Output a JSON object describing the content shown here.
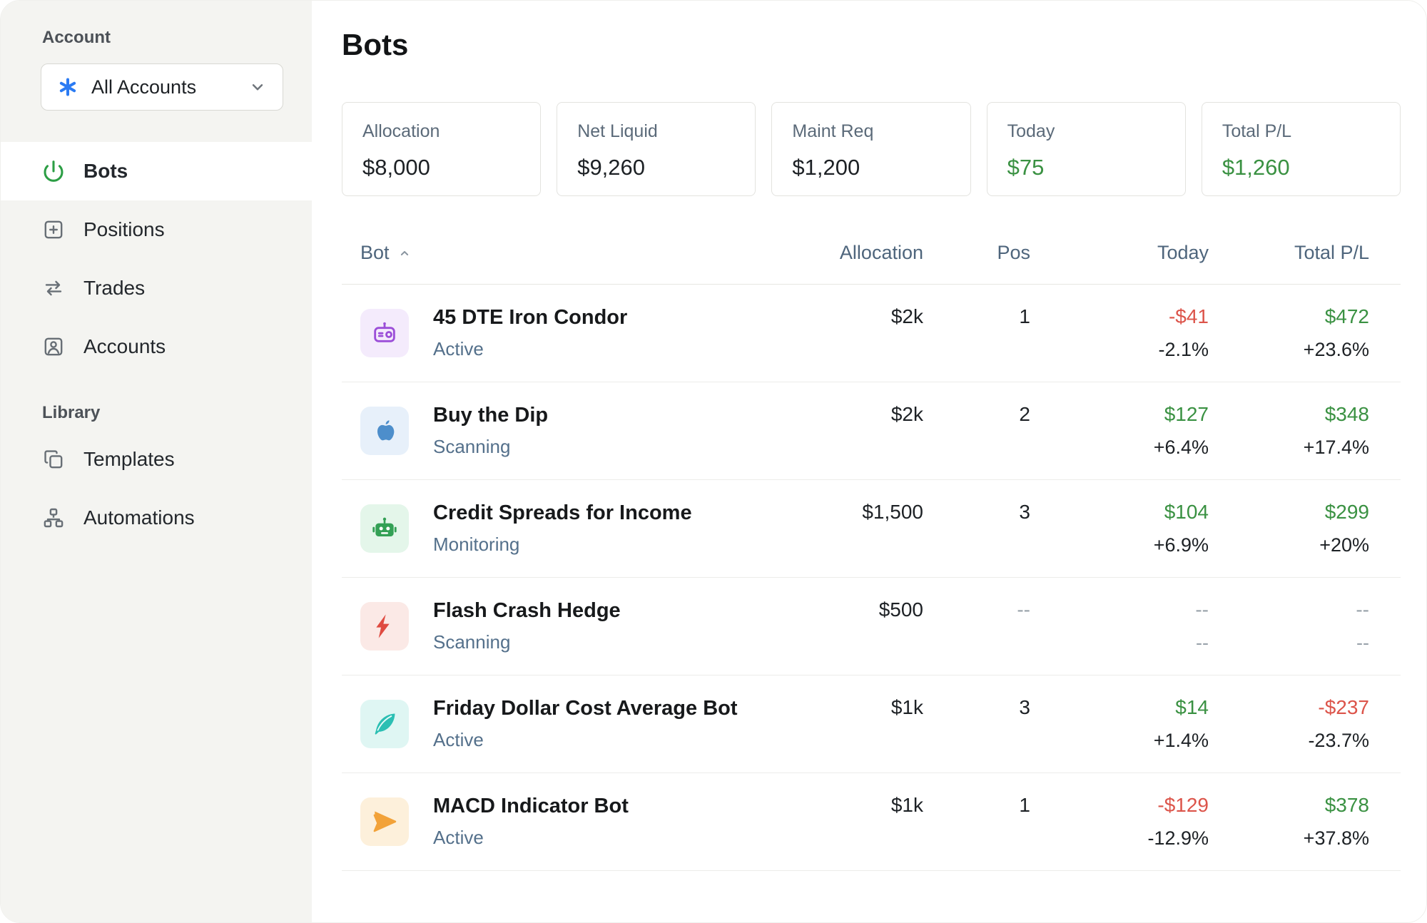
{
  "sidebar": {
    "account_label": "Account",
    "account_selector": {
      "value": "All Accounts",
      "icon": "asterisk-icon",
      "chevron": "chevron-down-icon"
    },
    "nav_items": [
      {
        "label": "Bots",
        "icon": "power-icon",
        "active": true
      },
      {
        "label": "Positions",
        "icon": "plus-square-icon",
        "active": false
      },
      {
        "label": "Trades",
        "icon": "swap-arrows-icon",
        "active": false
      },
      {
        "label": "Accounts",
        "icon": "user-icon",
        "active": false
      }
    ],
    "library_label": "Library",
    "library_items": [
      {
        "label": "Templates",
        "icon": "copy-icon",
        "active": false
      },
      {
        "label": "Automations",
        "icon": "workflow-icon",
        "active": false
      }
    ]
  },
  "page": {
    "title": "Bots"
  },
  "stats": [
    {
      "label": "Allocation",
      "value": "$8,000",
      "color": "dark"
    },
    {
      "label": "Net Liquid",
      "value": "$9,260",
      "color": "dark"
    },
    {
      "label": "Maint Req",
      "value": "$1,200",
      "color": "dark"
    },
    {
      "label": "Today",
      "value": "$75",
      "color": "green"
    },
    {
      "label": "Total P/L",
      "value": "$1,260",
      "color": "green"
    }
  ],
  "table": {
    "headers": {
      "bot": "Bot",
      "sort_icon": "caret-up-icon",
      "allocation": "Allocation",
      "pos": "Pos",
      "today": "Today",
      "total": "Total P/L"
    },
    "rows": [
      {
        "name": "45 DTE Iron Condor",
        "status": "Active",
        "icon": "robot-purple-icon",
        "allocation": "$2k",
        "allocation_color": "dark",
        "pos": "1",
        "pos_color": "dark",
        "today_value": "-$41",
        "today_color": "red",
        "today_pct": "-2.1%",
        "today_pct_color": "dark",
        "total_value": "$472",
        "total_color": "green",
        "total_pct": "+23.6%",
        "total_pct_color": "dark"
      },
      {
        "name": "Buy the Dip",
        "status": "Scanning",
        "icon": "apple-icon",
        "allocation": "$2k",
        "allocation_color": "dark",
        "pos": "2",
        "pos_color": "dark",
        "today_value": "$127",
        "today_color": "green",
        "today_pct": "+6.4%",
        "today_pct_color": "dark",
        "total_value": "$348",
        "total_color": "green",
        "total_pct": "+17.4%",
        "total_pct_color": "dark"
      },
      {
        "name": "Credit Spreads for Income",
        "status": "Monitoring",
        "icon": "robot-green-icon",
        "allocation": "$1,500",
        "allocation_color": "dark",
        "pos": "3",
        "pos_color": "dark",
        "today_value": "$104",
        "today_color": "green",
        "today_pct": "+6.9%",
        "today_pct_color": "dark",
        "total_value": "$299",
        "total_color": "green",
        "total_pct": "+20%",
        "total_pct_color": "dark"
      },
      {
        "name": "Flash Crash Hedge",
        "status": "Scanning",
        "icon": "lightning-icon",
        "allocation": "$500",
        "allocation_color": "dark",
        "pos": "--",
        "pos_color": "muted",
        "today_value": "--",
        "today_color": "muted",
        "today_pct": "--",
        "today_pct_color": "muted",
        "total_value": "--",
        "total_color": "muted",
        "total_pct": "--",
        "total_pct_color": "muted"
      },
      {
        "name": "Friday Dollar Cost Average Bot",
        "status": "Active",
        "icon": "feather-icon",
        "allocation": "$1k",
        "allocation_color": "dark",
        "pos": "3",
        "pos_color": "dark",
        "today_value": "$14",
        "today_color": "green",
        "today_pct": "+1.4%",
        "today_pct_color": "dark",
        "total_value": "-$237",
        "total_color": "red",
        "total_pct": "-23.7%",
        "total_pct_color": "dark"
      },
      {
        "name": "MACD Indicator Bot",
        "status": "Active",
        "icon": "plane-icon",
        "allocation": "$1k",
        "allocation_color": "dark",
        "pos": "1",
        "pos_color": "dark",
        "today_value": "-$129",
        "today_color": "red",
        "today_pct": "-12.9%",
        "today_pct_color": "dark",
        "total_value": "$378",
        "total_color": "green",
        "total_pct": "+37.8%",
        "total_pct_color": "dark"
      }
    ]
  }
}
